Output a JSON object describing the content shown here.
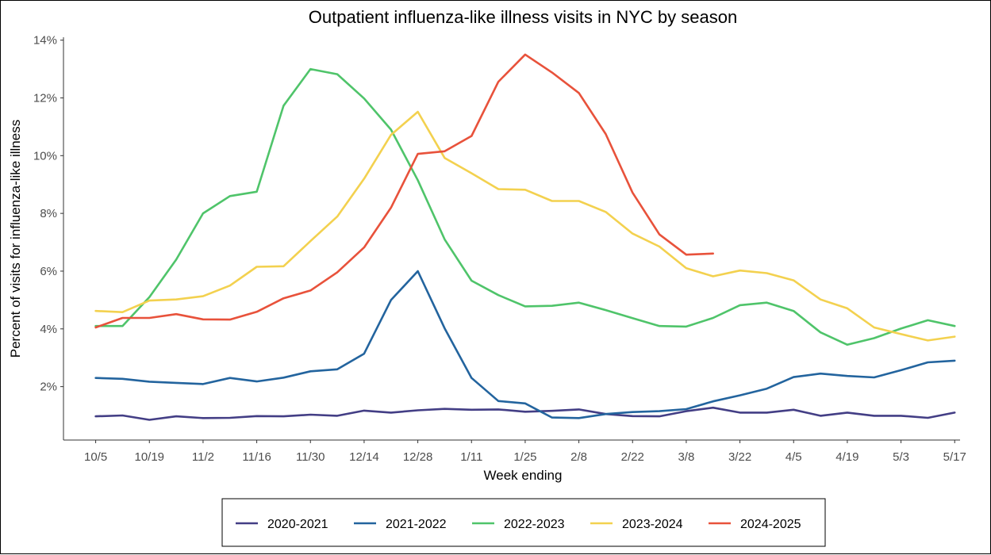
{
  "chart_data": {
    "type": "line",
    "title": "Outpatient influenza-like illness visits in NYC by season",
    "xlabel": "Week ending",
    "ylabel": "Percent of visits for influenza-like illness",
    "x_tick_labels": [
      "10/5",
      "10/19",
      "11/2",
      "11/16",
      "11/30",
      "12/14",
      "12/28",
      "1/11",
      "1/25",
      "2/8",
      "2/22",
      "3/8",
      "3/22",
      "4/5",
      "4/19",
      "5/3",
      "5/17"
    ],
    "y_ticks": [
      2,
      4,
      6,
      8,
      10,
      12,
      14
    ],
    "y_tick_labels": [
      "2%",
      "4%",
      "6%",
      "8%",
      "10%",
      "12%",
      "14%"
    ],
    "ylim": [
      0.15,
      14.1
    ],
    "x_week_range": [
      -1.2,
      32.2
    ],
    "grid": false,
    "legend_position": "bottom",
    "series": [
      {
        "name": "2020-2021",
        "color": "#433e85",
        "values": [
          0.97,
          1.0,
          0.85,
          0.97,
          0.91,
          0.92,
          0.98,
          0.97,
          1.03,
          0.99,
          1.17,
          1.1,
          1.18,
          1.23,
          1.2,
          1.21,
          1.13,
          1.16,
          1.21,
          1.05,
          0.98,
          0.97,
          1.15,
          1.27,
          1.1,
          1.1,
          1.2,
          0.99,
          1.1,
          0.99,
          0.99,
          0.92,
          1.1
        ]
      },
      {
        "name": "2021-2022",
        "color": "#23649e",
        "values": [
          2.3,
          2.27,
          2.17,
          2.13,
          2.09,
          2.3,
          2.18,
          2.31,
          2.53,
          2.6,
          3.14,
          5.0,
          6.0,
          4.02,
          2.3,
          1.5,
          1.42,
          0.93,
          0.91,
          1.05,
          1.12,
          1.15,
          1.22,
          1.49,
          1.7,
          1.93,
          2.33,
          2.45,
          2.37,
          2.32,
          2.57,
          2.84,
          2.9
        ]
      },
      {
        "name": "2022-2023",
        "color": "#4fc46a",
        "values": [
          4.1,
          4.1,
          5.1,
          6.4,
          8.0,
          8.6,
          8.75,
          11.73,
          13.0,
          12.82,
          11.98,
          10.9,
          9.15,
          7.1,
          5.67,
          5.17,
          4.78,
          4.8,
          4.91,
          4.65,
          4.37,
          4.1,
          4.08,
          4.38,
          4.82,
          4.91,
          4.62,
          3.88,
          3.45,
          3.68,
          4.01,
          4.3,
          4.1
        ]
      },
      {
        "name": "2023-2024",
        "color": "#f3d14f",
        "values": [
          4.62,
          4.58,
          4.98,
          5.02,
          5.13,
          5.5,
          6.15,
          6.17,
          7.04,
          7.89,
          9.2,
          10.72,
          11.52,
          9.92,
          9.39,
          8.84,
          8.82,
          8.43,
          8.43,
          8.05,
          7.3,
          6.85,
          6.1,
          5.82,
          6.02,
          5.93,
          5.68,
          5.02,
          4.71,
          4.05,
          3.82,
          3.6,
          3.73
        ]
      },
      {
        "name": "2024-2025",
        "color": "#e8523b",
        "values": [
          4.05,
          4.38,
          4.38,
          4.51,
          4.33,
          4.32,
          4.59,
          5.06,
          5.33,
          5.96,
          6.82,
          8.2,
          10.06,
          10.15,
          10.68,
          12.56,
          13.5,
          12.88,
          12.17,
          10.75,
          8.72,
          7.27,
          6.57,
          6.61
        ]
      }
    ]
  }
}
